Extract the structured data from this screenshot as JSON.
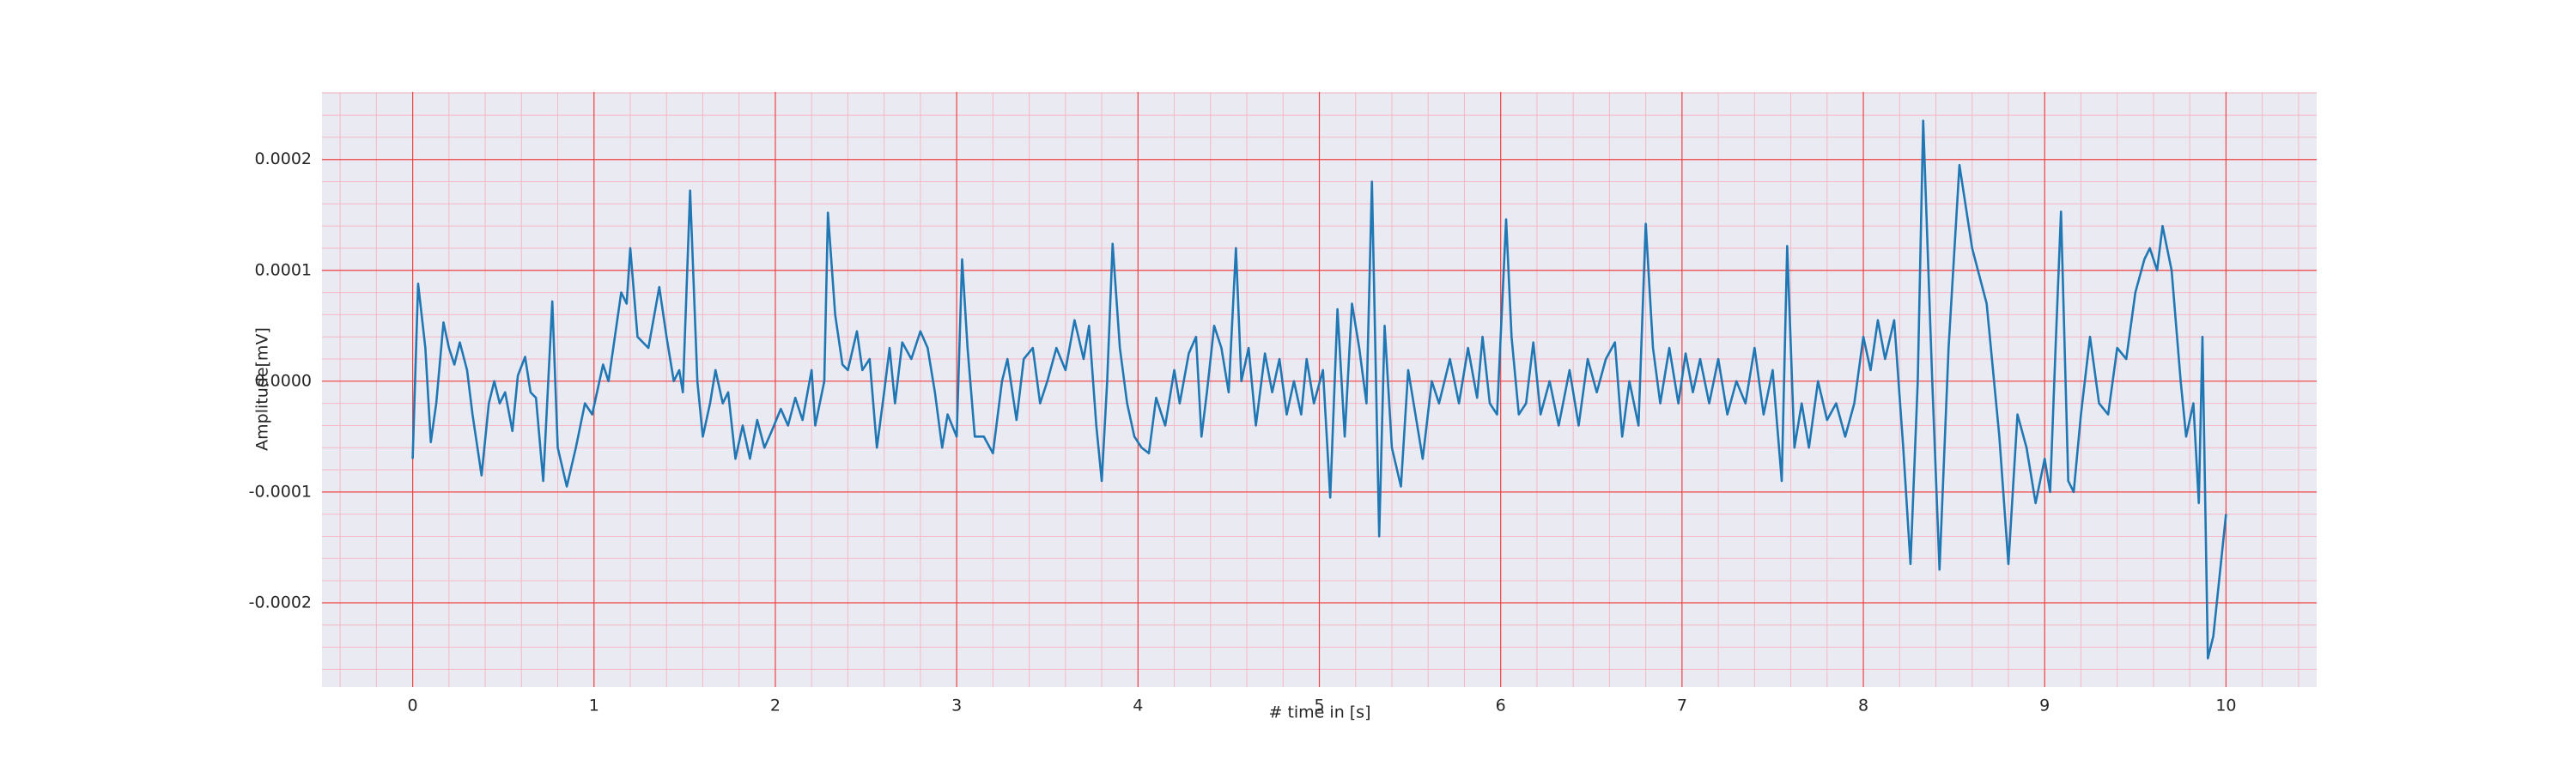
{
  "chart_data": {
    "type": "line",
    "xlabel": "# time in [s]",
    "ylabel": "Amplitude[mV]",
    "xlim": [
      -0.5,
      10.5
    ],
    "ylim": [
      -0.000276,
      0.000261
    ],
    "xticks": [
      0,
      1,
      2,
      3,
      4,
      5,
      6,
      7,
      8,
      9,
      10
    ],
    "yticks": [
      {
        "value": -0.0002,
        "label": "-0.0002"
      },
      {
        "value": -0.0001,
        "label": "-0.0001"
      },
      {
        "value": 0,
        "label": "0.0000"
      },
      {
        "value": 0.0001,
        "label": "0.0001"
      },
      {
        "value": 0.0002,
        "label": "0.0002"
      }
    ],
    "grid": true,
    "grid_color": "#ee4444",
    "minor_grid": true,
    "minor_grid_color": "#f5b8c4",
    "background": "#eaeaf2",
    "series": [
      {
        "color": "#1f77b4",
        "x": [
          0.0,
          0.03,
          0.07,
          0.1,
          0.13,
          0.17,
          0.2,
          0.23,
          0.26,
          0.3,
          0.33,
          0.38,
          0.42,
          0.45,
          0.48,
          0.51,
          0.55,
          0.58,
          0.62,
          0.65,
          0.68,
          0.72,
          0.77,
          0.8,
          0.85,
          0.9,
          0.95,
          0.99,
          1.05,
          1.08,
          1.15,
          1.18,
          1.2,
          1.24,
          1.3,
          1.36,
          1.4,
          1.44,
          1.47,
          1.49,
          1.53,
          1.57,
          1.6,
          1.64,
          1.67,
          1.71,
          1.74,
          1.78,
          1.82,
          1.86,
          1.9,
          1.94,
          1.98,
          2.03,
          2.07,
          2.11,
          2.15,
          2.2,
          2.22,
          2.27,
          2.29,
          2.33,
          2.37,
          2.4,
          2.45,
          2.48,
          2.52,
          2.56,
          2.6,
          2.63,
          2.66,
          2.7,
          2.75,
          2.8,
          2.84,
          2.88,
          2.92,
          2.95,
          3.0,
          3.03,
          3.06,
          3.1,
          3.15,
          3.2,
          3.25,
          3.28,
          3.33,
          3.37,
          3.42,
          3.46,
          3.5,
          3.55,
          3.6,
          3.65,
          3.7,
          3.73,
          3.77,
          3.8,
          3.83,
          3.86,
          3.9,
          3.94,
          3.98,
          4.02,
          4.06,
          4.1,
          4.15,
          4.2,
          4.23,
          4.28,
          4.32,
          4.35,
          4.38,
          4.42,
          4.46,
          4.5,
          4.54,
          4.57,
          4.61,
          4.65,
          4.7,
          4.74,
          4.78,
          4.82,
          4.86,
          4.9,
          4.93,
          4.97,
          5.02,
          5.06,
          5.1,
          5.14,
          5.18,
          5.22,
          5.26,
          5.29,
          5.33,
          5.36,
          5.4,
          5.45,
          5.49,
          5.53,
          5.57,
          5.62,
          5.66,
          5.72,
          5.77,
          5.82,
          5.87,
          5.9,
          5.94,
          5.98,
          6.03,
          6.06,
          6.1,
          6.14,
          6.18,
          6.22,
          6.27,
          6.32,
          6.38,
          6.43,
          6.48,
          6.53,
          6.58,
          6.63,
          6.67,
          6.71,
          6.76,
          6.8,
          6.84,
          6.88,
          6.93,
          6.98,
          7.02,
          7.06,
          7.1,
          7.15,
          7.2,
          7.25,
          7.3,
          7.35,
          7.4,
          7.45,
          7.5,
          7.55,
          7.58,
          7.62,
          7.66,
          7.7,
          7.75,
          7.8,
          7.85,
          7.9,
          7.95,
          8.0,
          8.04,
          8.08,
          8.12,
          8.17,
          8.22,
          8.26,
          8.3,
          8.33,
          8.38,
          8.42,
          8.47,
          8.53,
          8.6,
          8.68,
          8.75,
          8.8,
          8.85,
          8.9,
          8.95,
          9.0,
          9.03,
          9.06,
          9.09,
          9.13,
          9.16,
          9.2,
          9.25,
          9.3,
          9.35,
          9.4,
          9.45,
          9.5,
          9.55,
          9.58,
          9.62,
          9.65,
          9.7,
          9.75,
          9.78,
          9.82,
          9.85,
          9.87,
          9.9,
          9.93,
          10.0
        ],
        "values": [
          -7e-05,
          8.8e-05,
          3e-05,
          -5.5e-05,
          -2e-05,
          5.3e-05,
          3e-05,
          1.5e-05,
          3.5e-05,
          1e-05,
          -3e-05,
          -8.5e-05,
          -2e-05,
          0,
          -2e-05,
          -1e-05,
          -4.5e-05,
          5e-06,
          2.2e-05,
          -1e-05,
          -1.5e-05,
          -9e-05,
          7.2e-05,
          -6e-05,
          -9.5e-05,
          -6e-05,
          -2e-05,
          -3e-05,
          1.5e-05,
          0,
          8e-05,
          7e-05,
          0.00012,
          4e-05,
          3e-05,
          8.5e-05,
          4e-05,
          0,
          1e-05,
          -1e-05,
          0.000172,
          0,
          -5e-05,
          -2e-05,
          1e-05,
          -2e-05,
          -1e-05,
          -7e-05,
          -4e-05,
          -7e-05,
          -3.5e-05,
          -6e-05,
          -4.5e-05,
          -2.5e-05,
          -4e-05,
          -1.5e-05,
          -3.5e-05,
          1e-05,
          -4e-05,
          0,
          0.000152,
          6e-05,
          1.5e-05,
          1e-05,
          4.5e-05,
          1e-05,
          2e-05,
          -6e-05,
          -1e-05,
          3e-05,
          -2e-05,
          3.5e-05,
          2e-05,
          4.5e-05,
          3e-05,
          -1e-05,
          -6e-05,
          -3e-05,
          -5e-05,
          0.00011,
          3e-05,
          -5e-05,
          -5e-05,
          -6.5e-05,
          0,
          2e-05,
          -3.5e-05,
          2e-05,
          3e-05,
          -2e-05,
          0,
          3e-05,
          1e-05,
          5.5e-05,
          2e-05,
          5e-05,
          -4e-05,
          -9e-05,
          0,
          0.000124,
          3e-05,
          -2e-05,
          -5e-05,
          -6e-05,
          -6.5e-05,
          -1.5e-05,
          -4e-05,
          1e-05,
          -2e-05,
          2.5e-05,
          4e-05,
          -5e-05,
          -1e-05,
          5e-05,
          3e-05,
          -1e-05,
          0.00012,
          0,
          3e-05,
          -4e-05,
          2.5e-05,
          -1e-05,
          2e-05,
          -3e-05,
          0,
          -3e-05,
          2e-05,
          -2e-05,
          1e-05,
          -0.000105,
          6.5e-05,
          -5e-05,
          7e-05,
          3e-05,
          -2e-05,
          0.00018,
          -0.00014,
          5e-05,
          -6e-05,
          -9.5e-05,
          1e-05,
          -3e-05,
          -7e-05,
          0,
          -2e-05,
          2e-05,
          -2e-05,
          3e-05,
          -1.5e-05,
          4e-05,
          -2e-05,
          -3e-05,
          0.000146,
          4e-05,
          -3e-05,
          -2e-05,
          3.5e-05,
          -3e-05,
          0,
          -4e-05,
          1e-05,
          -4e-05,
          2e-05,
          -1e-05,
          2e-05,
          3.5e-05,
          -5e-05,
          0,
          -4e-05,
          0.000142,
          3e-05,
          -2e-05,
          3e-05,
          -2e-05,
          2.5e-05,
          -1e-05,
          2e-05,
          -2e-05,
          2e-05,
          -3e-05,
          0,
          -2e-05,
          3e-05,
          -3e-05,
          1e-05,
          -9e-05,
          0.000122,
          -6e-05,
          -2e-05,
          -6e-05,
          0,
          -3.5e-05,
          -2e-05,
          -5e-05,
          -2e-05,
          4e-05,
          1e-05,
          5.5e-05,
          2e-05,
          5.5e-05,
          -6e-05,
          -0.000165,
          0,
          0.000235,
          0,
          -0.00017,
          3e-05,
          0.000195,
          0.00012,
          7e-05,
          -5e-05,
          -0.000165,
          -3e-05,
          -6e-05,
          -0.00011,
          -7e-05,
          -0.0001,
          3e-05,
          0.000153,
          -9e-05,
          -0.0001,
          -3e-05,
          4e-05,
          -2e-05,
          -3e-05,
          3e-05,
          2e-05,
          8e-05,
          0.00011,
          0.00012,
          0.0001,
          0.00014,
          0.0001,
          0,
          -5e-05,
          -2e-05,
          -0.00011,
          4e-05,
          -0.00025,
          -0.00023,
          -0.00012
        ]
      }
    ]
  }
}
